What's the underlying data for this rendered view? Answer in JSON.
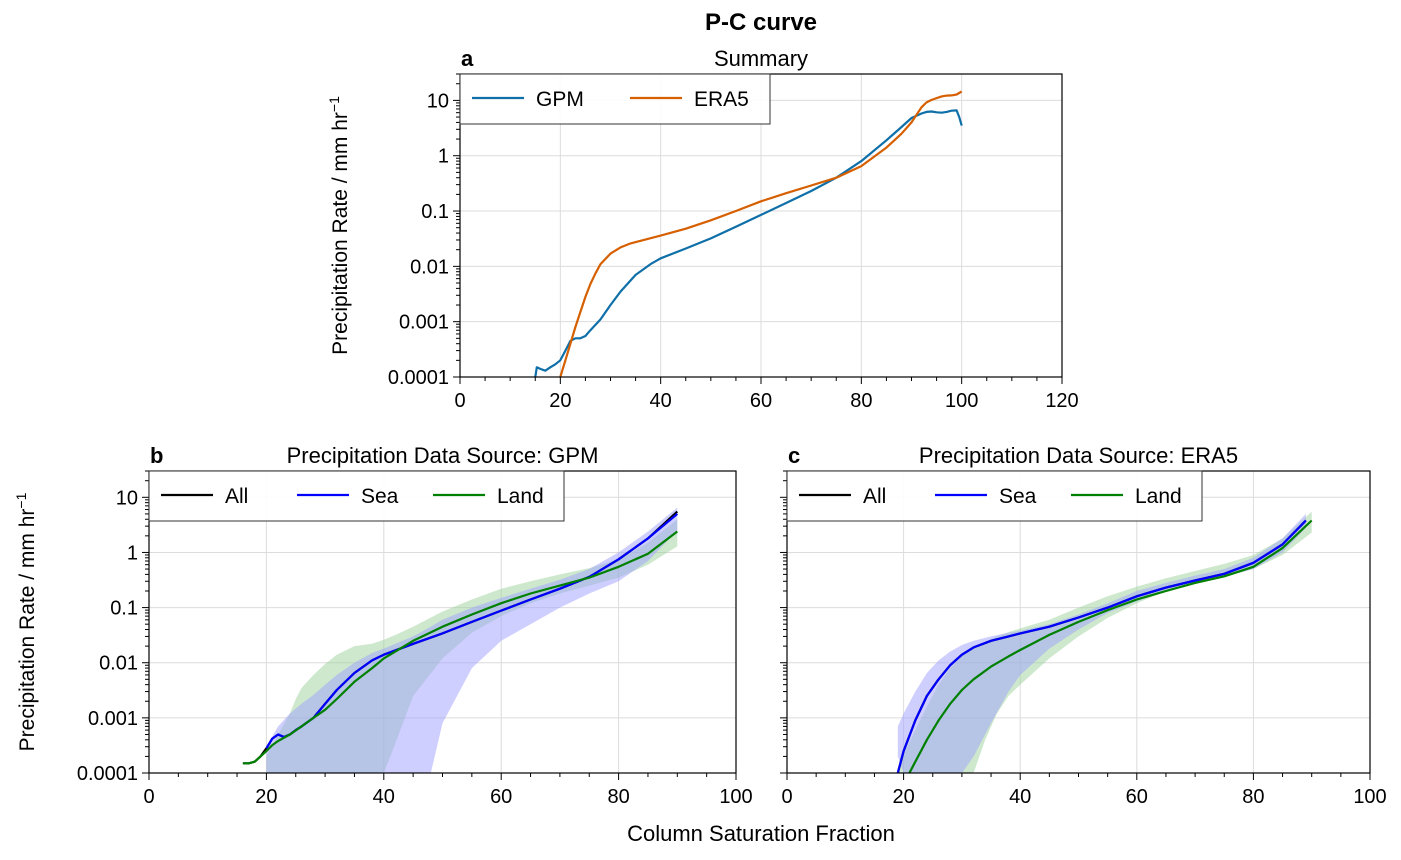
{
  "figure": {
    "suptitle": "P-C curve",
    "shared_xlabel": "Column Saturation Fraction",
    "shared_ylabel": "Precipitation Rate / mm hr",
    "ylabel_superscript": "−1",
    "colors": {
      "gpm": "#0f6fa8",
      "era5": "#d65f00",
      "all": "#000000",
      "sea": "#0000ff",
      "land": "#008000",
      "sea_fill": "#9f9fff",
      "land_fill": "#9cd19c"
    }
  },
  "chart_data": [
    {
      "panel": "a",
      "title": "Summary",
      "type": "line",
      "xlabel": "",
      "ylabel": "Precipitation Rate / mm hr⁻¹",
      "xlim": [
        0,
        120
      ],
      "ylim": [
        0.0001,
        30
      ],
      "yscale": "log",
      "xticks": [
        0,
        20,
        40,
        60,
        80,
        100,
        120
      ],
      "yticks": [
        0.0001,
        0.001,
        0.01,
        0.1,
        1,
        10
      ],
      "ytick_labels": [
        "0.0001",
        "0.001",
        "0.01",
        "0.1",
        "1",
        "10"
      ],
      "grid": true,
      "legend": {
        "loc": "upper-left",
        "ncol": 2,
        "entries": [
          "GPM",
          "ERA5"
        ]
      },
      "series": [
        {
          "name": "GPM",
          "color": "#0f6fa8",
          "x": [
            15,
            15.3,
            16,
            17,
            18,
            19,
            20,
            21,
            22,
            23,
            24,
            25,
            26,
            28,
            30,
            32,
            35,
            38,
            40,
            45,
            50,
            55,
            60,
            65,
            70,
            75,
            80,
            85,
            88,
            90,
            92,
            93,
            94,
            95,
            96,
            97,
            98,
            99,
            99.5,
            100
          ],
          "y": [
            0.0001,
            0.00015,
            0.00014,
            0.00013,
            0.00015,
            0.00017,
            0.0002,
            0.0003,
            0.00045,
            0.0005,
            0.0005,
            0.00055,
            0.0007,
            0.0011,
            0.002,
            0.0035,
            0.007,
            0.011,
            0.014,
            0.021,
            0.032,
            0.052,
            0.085,
            0.14,
            0.23,
            0.4,
            0.8,
            1.9,
            3.3,
            4.8,
            5.8,
            6.2,
            6.3,
            6.1,
            6.0,
            6.2,
            6.5,
            6.6,
            5.0,
            3.5
          ]
        },
        {
          "name": "ERA5",
          "color": "#d65f00",
          "x": [
            20,
            21,
            22,
            23,
            24,
            25,
            26,
            27,
            28,
            30,
            32,
            34,
            36,
            40,
            45,
            50,
            55,
            60,
            65,
            70,
            75,
            80,
            85,
            88,
            90,
            91,
            92,
            93,
            94,
            95,
            96,
            97,
            98,
            99,
            100
          ],
          "y": [
            0.0001,
            0.0002,
            0.0004,
            0.0008,
            0.0015,
            0.0028,
            0.0048,
            0.0075,
            0.011,
            0.017,
            0.022,
            0.026,
            0.029,
            0.036,
            0.048,
            0.068,
            0.1,
            0.15,
            0.21,
            0.29,
            0.4,
            0.65,
            1.4,
            2.5,
            4.0,
            5.5,
            7.5,
            9.2,
            10.2,
            11.0,
            11.8,
            12.2,
            12.3,
            12.8,
            14.5
          ]
        }
      ]
    },
    {
      "panel": "b",
      "title": "Precipitation Data Source: GPM",
      "type": "line",
      "xlabel": "Column Saturation Fraction",
      "ylabel": "Precipitation Rate / mm hr⁻¹",
      "xlim": [
        0,
        100
      ],
      "ylim": [
        0.0001,
        30
      ],
      "yscale": "log",
      "xticks": [
        0,
        20,
        40,
        60,
        80,
        100
      ],
      "yticks": [
        0.0001,
        0.001,
        0.01,
        0.1,
        1,
        10
      ],
      "ytick_labels": [
        "0.0001",
        "0.001",
        "0.01",
        "0.1",
        "1",
        "10"
      ],
      "grid": true,
      "legend": {
        "loc": "upper-left",
        "ncol": 3,
        "entries": [
          "All",
          "Sea",
          "Land"
        ]
      },
      "bands": [
        {
          "name": "Land",
          "color": "#9cd19c",
          "x": [
            20,
            22,
            24,
            25,
            26,
            28,
            30,
            32,
            35,
            38,
            40,
            42,
            45,
            50,
            55,
            60,
            65,
            70,
            75,
            80,
            85,
            90
          ],
          "lower": [
            0.0001,
            0.0001,
            0.0001,
            0.0001,
            0.0001,
            0.0001,
            0.0001,
            0.0001,
            0.0001,
            0.0001,
            0.0001,
            0.00035,
            0.0025,
            0.012,
            0.035,
            0.07,
            0.12,
            0.18,
            0.25,
            0.35,
            0.6,
            1.3
          ],
          "upper": [
            0.0002,
            0.0005,
            0.0012,
            0.0022,
            0.0035,
            0.006,
            0.0095,
            0.014,
            0.02,
            0.022,
            0.026,
            0.032,
            0.045,
            0.085,
            0.14,
            0.22,
            0.3,
            0.4,
            0.52,
            0.75,
            1.5,
            4.0
          ]
        },
        {
          "name": "Sea",
          "color": "#9f9fff",
          "x": [
            20,
            22,
            24,
            26,
            28,
            30,
            32,
            35,
            38,
            40,
            42,
            45,
            48,
            50,
            55,
            60,
            65,
            70,
            75,
            80,
            85,
            90
          ],
          "lower": [
            0.0001,
            0.0001,
            0.0001,
            0.0001,
            0.0001,
            0.0001,
            0.0001,
            0.0001,
            0.0001,
            0.0001,
            0.0001,
            0.0001,
            0.0001,
            0.0008,
            0.008,
            0.025,
            0.05,
            0.1,
            0.18,
            0.3,
            0.7,
            2.5
          ],
          "upper": [
            0.0003,
            0.0007,
            0.0012,
            0.0018,
            0.0026,
            0.004,
            0.006,
            0.01,
            0.015,
            0.018,
            0.022,
            0.03,
            0.045,
            0.06,
            0.1,
            0.15,
            0.22,
            0.32,
            0.5,
            1.0,
            2.4,
            6.5
          ]
        }
      ],
      "series": [
        {
          "name": "All",
          "color": "#000000",
          "x": [
            16,
            17,
            18,
            19,
            20,
            21,
            22,
            23,
            24,
            25,
            26,
            28,
            30,
            32,
            35,
            38,
            40,
            45,
            50,
            55,
            60,
            65,
            70,
            75,
            80,
            85,
            90
          ],
          "y": [
            0.00015,
            0.00015,
            0.00016,
            0.0002,
            0.00028,
            0.00042,
            0.0005,
            0.00045,
            0.0005,
            0.0006,
            0.0007,
            0.001,
            0.0018,
            0.0032,
            0.0065,
            0.011,
            0.014,
            0.022,
            0.034,
            0.055,
            0.088,
            0.14,
            0.22,
            0.36,
            0.75,
            1.8,
            5.5
          ]
        },
        {
          "name": "Sea",
          "color": "#0000ff",
          "x": [
            20,
            21,
            22,
            23,
            24,
            25,
            26,
            28,
            30,
            32,
            35,
            38,
            40,
            45,
            50,
            55,
            60,
            65,
            70,
            75,
            80,
            85,
            90
          ],
          "y": [
            0.00028,
            0.00042,
            0.0005,
            0.00045,
            0.0005,
            0.0006,
            0.0007,
            0.001,
            0.0018,
            0.0032,
            0.0065,
            0.011,
            0.014,
            0.022,
            0.034,
            0.055,
            0.088,
            0.14,
            0.22,
            0.36,
            0.75,
            1.8,
            5.0
          ]
        },
        {
          "name": "Land",
          "color": "#008000",
          "x": [
            16,
            17,
            18,
            19,
            20,
            21,
            22,
            24,
            26,
            28,
            30,
            32,
            35,
            38,
            40,
            45,
            50,
            55,
            60,
            65,
            70,
            75,
            80,
            85,
            90
          ],
          "y": [
            0.00015,
            0.00015,
            0.00016,
            0.0002,
            0.00025,
            0.00032,
            0.00038,
            0.0005,
            0.0007,
            0.001,
            0.0014,
            0.0022,
            0.0045,
            0.008,
            0.012,
            0.025,
            0.045,
            0.075,
            0.12,
            0.18,
            0.25,
            0.35,
            0.55,
            0.95,
            2.4
          ]
        }
      ]
    },
    {
      "panel": "c",
      "title": "Precipitation Data Source: ERA5",
      "type": "line",
      "xlabel": "Column Saturation Fraction",
      "ylabel": "",
      "xlim": [
        0,
        100
      ],
      "ylim": [
        0.0001,
        30
      ],
      "yscale": "log",
      "xticks": [
        0,
        20,
        40,
        60,
        80,
        100
      ],
      "yticks": [
        0.0001,
        0.001,
        0.01,
        0.1,
        1,
        10
      ],
      "ytick_labels": [],
      "grid": true,
      "legend": {
        "loc": "upper-left",
        "ncol": 3,
        "entries": [
          "All",
          "Sea",
          "Land"
        ]
      },
      "bands": [
        {
          "name": "Land",
          "color": "#9cd19c",
          "x": [
            19,
            20,
            22,
            24,
            26,
            28,
            30,
            32,
            34,
            36,
            38,
            40,
            45,
            50,
            55,
            60,
            65,
            70,
            75,
            80,
            85,
            90
          ],
          "lower": [
            0.0001,
            0.0001,
            0.0001,
            0.0001,
            0.0001,
            0.0001,
            0.0001,
            0.0001,
            0.0004,
            0.0012,
            0.0025,
            0.004,
            0.012,
            0.03,
            0.065,
            0.12,
            0.2,
            0.28,
            0.36,
            0.5,
            0.9,
            2.3
          ],
          "upper": [
            0.0001,
            0.00022,
            0.0006,
            0.0016,
            0.004,
            0.008,
            0.013,
            0.018,
            0.024,
            0.03,
            0.036,
            0.042,
            0.06,
            0.1,
            0.16,
            0.24,
            0.34,
            0.46,
            0.62,
            0.9,
            1.8,
            5.5
          ]
        },
        {
          "name": "Sea",
          "color": "#9f9fff",
          "x": [
            19,
            20,
            22,
            24,
            26,
            28,
            30,
            32,
            35,
            38,
            40,
            45,
            50,
            55,
            60,
            65,
            70,
            75,
            80,
            85,
            89
          ],
          "lower": [
            0.0002,
            0.0001,
            0.0001,
            0.0001,
            0.0001,
            0.0001,
            0.0001,
            0.0002,
            0.0008,
            0.003,
            0.006,
            0.018,
            0.04,
            0.08,
            0.13,
            0.2,
            0.28,
            0.36,
            0.5,
            1.0,
            2.8
          ],
          "upper": [
            0.0007,
            0.0012,
            0.003,
            0.0065,
            0.011,
            0.016,
            0.021,
            0.025,
            0.03,
            0.035,
            0.038,
            0.05,
            0.075,
            0.12,
            0.2,
            0.28,
            0.38,
            0.5,
            0.8,
            1.8,
            5.0
          ]
        }
      ],
      "series": [
        {
          "name": "All",
          "color": "#000000",
          "x": [
            19,
            20,
            22,
            24,
            26,
            28,
            30,
            32,
            35,
            38,
            40,
            45,
            50,
            55,
            60,
            65,
            70,
            75,
            80,
            85,
            89
          ],
          "y": [
            0.0001,
            0.00025,
            0.0009,
            0.0025,
            0.005,
            0.009,
            0.014,
            0.019,
            0.025,
            0.03,
            0.034,
            0.045,
            0.066,
            0.1,
            0.16,
            0.23,
            0.31,
            0.41,
            0.65,
            1.4,
            3.8
          ]
        },
        {
          "name": "Sea",
          "color": "#0000ff",
          "x": [
            19,
            20,
            22,
            24,
            26,
            28,
            30,
            32,
            35,
            38,
            40,
            45,
            50,
            55,
            60,
            65,
            70,
            75,
            80,
            85,
            89
          ],
          "y": [
            0.0001,
            0.00025,
            0.0009,
            0.0025,
            0.005,
            0.009,
            0.014,
            0.019,
            0.025,
            0.03,
            0.034,
            0.045,
            0.066,
            0.1,
            0.16,
            0.23,
            0.31,
            0.41,
            0.65,
            1.4,
            3.8
          ]
        },
        {
          "name": "Land",
          "color": "#008000",
          "x": [
            21,
            22,
            24,
            26,
            28,
            30,
            32,
            35,
            38,
            40,
            45,
            50,
            55,
            60,
            65,
            70,
            75,
            80,
            85,
            90
          ],
          "y": [
            0.0001,
            0.00016,
            0.0004,
            0.0009,
            0.0018,
            0.0032,
            0.005,
            0.0085,
            0.013,
            0.017,
            0.032,
            0.055,
            0.09,
            0.14,
            0.2,
            0.28,
            0.37,
            0.55,
            1.2,
            3.8
          ]
        }
      ]
    }
  ]
}
